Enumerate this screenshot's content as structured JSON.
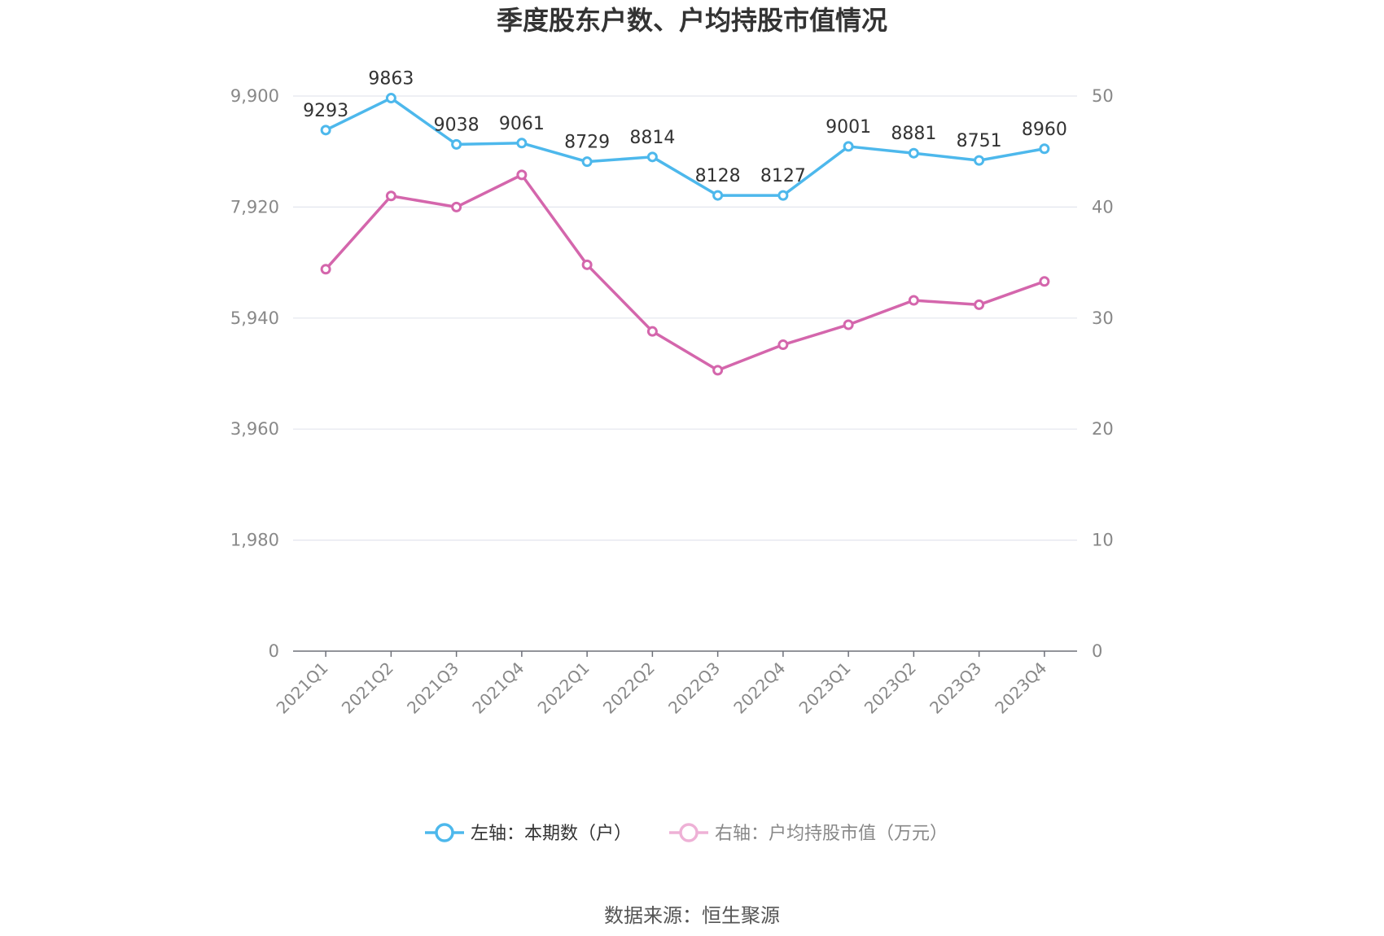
{
  "chart_data": {
    "type": "line",
    "title": "季度股东户数、户均持股市值情况",
    "categories": [
      "2021Q1",
      "2021Q2",
      "2021Q3",
      "2021Q4",
      "2022Q1",
      "2022Q2",
      "2022Q3",
      "2022Q4",
      "2023Q1",
      "2023Q2",
      "2023Q3",
      "2023Q4"
    ],
    "left_axis": {
      "ticks": [
        "0",
        "1,980",
        "3,960",
        "5,940",
        "7,920",
        "9,900"
      ],
      "ylim": [
        0,
        9900
      ]
    },
    "right_axis": {
      "ticks": [
        "0",
        "10",
        "20",
        "30",
        "40",
        "50"
      ],
      "ylim": [
        0,
        50
      ]
    },
    "grid": true,
    "legend_position": "bottom-center",
    "series": [
      {
        "name": "左轴：本期数（户）",
        "axis": "left",
        "color": "#4db8ec",
        "values": [
          9293,
          9863,
          9038,
          9061,
          8729,
          8814,
          8128,
          8127,
          9001,
          8881,
          8751,
          8960
        ],
        "labels": [
          "9293",
          "9863",
          "9038",
          "9061",
          "8729",
          "8814",
          "8128",
          "8127",
          "9001",
          "8881",
          "8751",
          "8960"
        ]
      },
      {
        "name": "右轴：户均持股市值（万元）",
        "axis": "right",
        "color": "#d466ac",
        "values": [
          34.4,
          41.0,
          40.0,
          42.9,
          34.8,
          28.8,
          25.3,
          27.6,
          29.4,
          31.6,
          31.2,
          33.3
        ]
      }
    ],
    "source": "数据来源：恒生聚源"
  }
}
